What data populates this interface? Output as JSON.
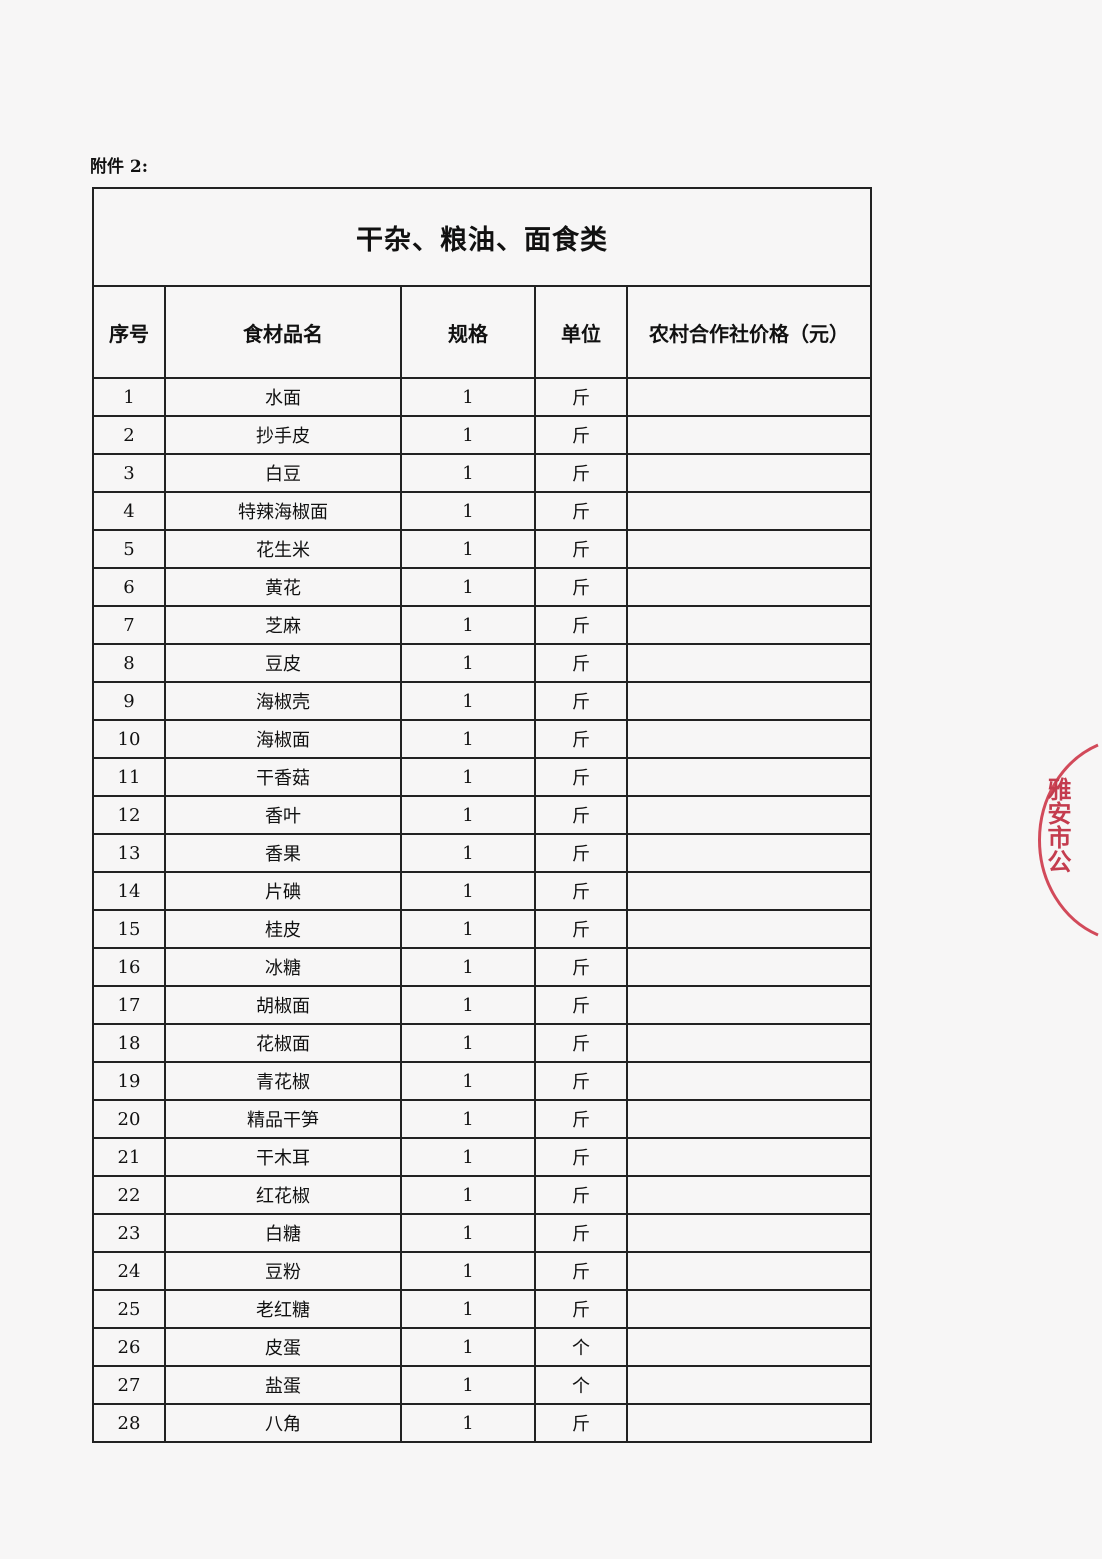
{
  "attachment_label": "附件 2:",
  "table": {
    "title": "干杂、粮油、面食类",
    "headers": [
      "序号",
      "食材品名",
      "规格",
      "单位",
      "农村合作社价格（元）"
    ],
    "rows": [
      [
        "1",
        "水面",
        "1",
        "斤",
        ""
      ],
      [
        "2",
        "抄手皮",
        "1",
        "斤",
        ""
      ],
      [
        "3",
        "白豆",
        "1",
        "斤",
        ""
      ],
      [
        "4",
        "特辣海椒面",
        "1",
        "斤",
        ""
      ],
      [
        "5",
        "花生米",
        "1",
        "斤",
        ""
      ],
      [
        "6",
        "黄花",
        "1",
        "斤",
        ""
      ],
      [
        "7",
        "芝麻",
        "1",
        "斤",
        ""
      ],
      [
        "8",
        "豆皮",
        "1",
        "斤",
        ""
      ],
      [
        "9",
        "海椒壳",
        "1",
        "斤",
        ""
      ],
      [
        "10",
        "海椒面",
        "1",
        "斤",
        ""
      ],
      [
        "11",
        "干香菇",
        "1",
        "斤",
        ""
      ],
      [
        "12",
        "香叶",
        "1",
        "斤",
        ""
      ],
      [
        "13",
        "香果",
        "1",
        "斤",
        ""
      ],
      [
        "14",
        "片碘",
        "1",
        "斤",
        ""
      ],
      [
        "15",
        "桂皮",
        "1",
        "斤",
        ""
      ],
      [
        "16",
        "冰糖",
        "1",
        "斤",
        ""
      ],
      [
        "17",
        "胡椒面",
        "1",
        "斤",
        ""
      ],
      [
        "18",
        "花椒面",
        "1",
        "斤",
        ""
      ],
      [
        "19",
        "青花椒",
        "1",
        "斤",
        ""
      ],
      [
        "20",
        "精品干笋",
        "1",
        "斤",
        ""
      ],
      [
        "21",
        "干木耳",
        "1",
        "斤",
        ""
      ],
      [
        "22",
        "红花椒",
        "1",
        "斤",
        ""
      ],
      [
        "23",
        "白糖",
        "1",
        "斤",
        ""
      ],
      [
        "24",
        "豆粉",
        "1",
        "斤",
        ""
      ],
      [
        "25",
        "老红糖",
        "1",
        "斤",
        ""
      ],
      [
        "26",
        "皮蛋",
        "1",
        "个",
        ""
      ],
      [
        "27",
        "盐蛋",
        "1",
        "个",
        ""
      ],
      [
        "28",
        "八角",
        "1",
        "斤",
        ""
      ]
    ]
  },
  "stamp": {
    "text": "雅安市公",
    "color": "#c43c4e"
  }
}
